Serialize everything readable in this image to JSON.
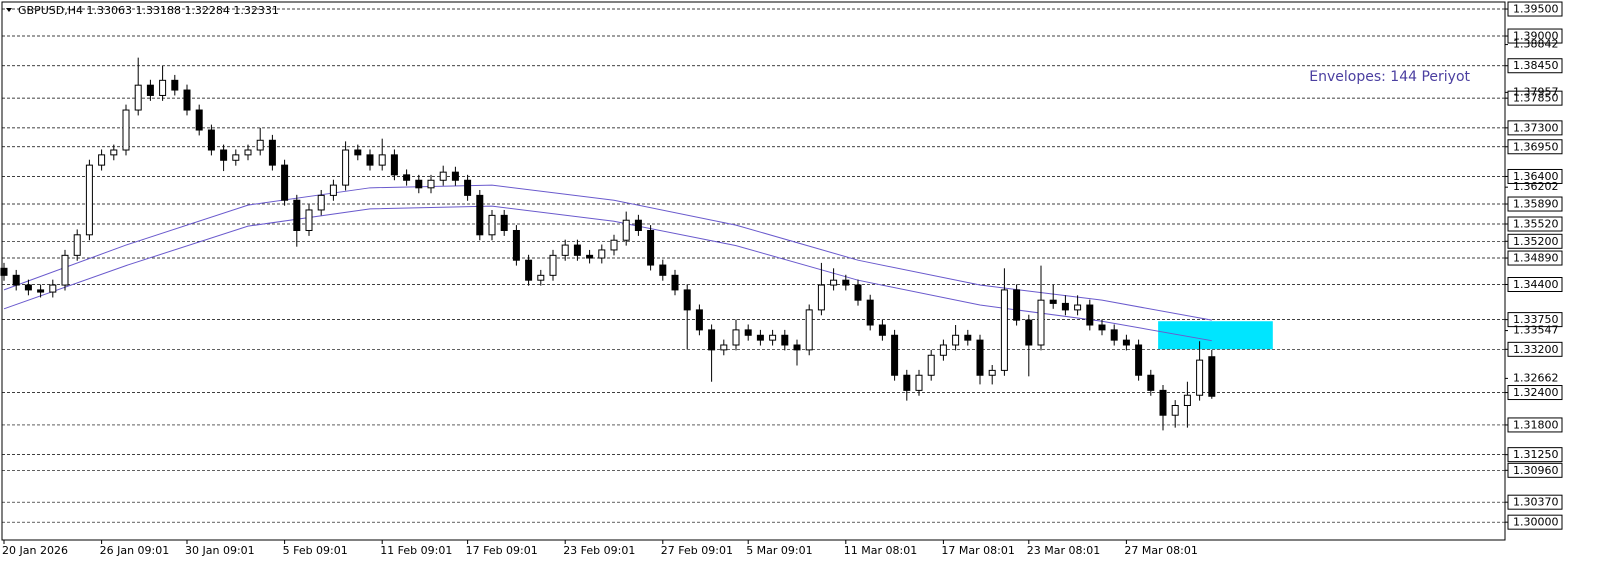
{
  "chart_data": {
    "type": "candlestick",
    "title": "GBPUSD,H4  1.33063 1.33188 1.32284 1.32331",
    "annotation": "Envelopes: 144 Periyot",
    "categories": [
      "20 Jan 2026",
      null,
      null,
      null,
      null,
      null,
      null,
      null,
      "26 Jan 09:01",
      null,
      null,
      null,
      null,
      null,
      null,
      "30 Jan 09:01",
      null,
      null,
      null,
      null,
      null,
      null,
      null,
      "5 Feb 09:01",
      null,
      null,
      null,
      null,
      null,
      null,
      null,
      "11 Feb 09:01",
      null,
      null,
      null,
      null,
      null,
      null,
      "17 Feb 09:01",
      null,
      null,
      null,
      null,
      null,
      null,
      null,
      "23 Feb 09:01",
      null,
      null,
      null,
      null,
      null,
      null,
      null,
      "27 Feb 09:01",
      null,
      null,
      null,
      null,
      null,
      null,
      "5 Mar 09:01",
      null,
      null,
      null,
      null,
      null,
      null,
      null,
      "11 Mar 08:01",
      null,
      null,
      null,
      null,
      null,
      null,
      null,
      "17 Mar 08:01",
      null,
      null,
      null,
      null,
      null,
      null,
      "23 Mar 08:01",
      null,
      null,
      null,
      null,
      null,
      null,
      null,
      "27 Mar 08:01",
      null,
      null,
      null,
      null,
      null,
      null,
      null
    ],
    "candles": [
      [
        1.347,
        1.348,
        1.3447,
        1.3457
      ],
      [
        1.3457,
        1.3467,
        1.3429,
        1.3439
      ],
      [
        1.3439,
        1.3449,
        1.342,
        1.343
      ],
      [
        1.343,
        1.344,
        1.3416,
        1.3426
      ],
      [
        1.3426,
        1.3449,
        1.3416,
        1.3439
      ],
      [
        1.3439,
        1.3504,
        1.3429,
        1.3494
      ],
      [
        1.3494,
        1.3542,
        1.3484,
        1.3532
      ],
      [
        1.3532,
        1.3671,
        1.3522,
        1.3661
      ],
      [
        1.3661,
        1.369,
        1.3651,
        1.368
      ],
      [
        1.368,
        1.3699,
        1.367,
        1.3689
      ],
      [
        1.3689,
        1.3773,
        1.3679,
        1.3763
      ],
      [
        1.3763,
        1.386,
        1.3753,
        1.3809
      ],
      [
        1.3809,
        1.3819,
        1.378,
        1.379
      ],
      [
        1.379,
        1.3845,
        1.378,
        1.3818
      ],
      [
        1.3818,
        1.3828,
        1.379,
        1.38
      ],
      [
        1.38,
        1.381,
        1.3753,
        1.3763
      ],
      [
        1.3763,
        1.3773,
        1.3716,
        1.3726
      ],
      [
        1.3726,
        1.3736,
        1.3679,
        1.3689
      ],
      [
        1.3689,
        1.3699,
        1.365,
        1.367
      ],
      [
        1.367,
        1.369,
        1.366,
        1.368
      ],
      [
        1.368,
        1.3699,
        1.367,
        1.3689
      ],
      [
        1.3689,
        1.373,
        1.3679,
        1.3707
      ],
      [
        1.3707,
        1.3717,
        1.3651,
        1.3661
      ],
      [
        1.3661,
        1.3671,
        1.3586,
        1.3596
      ],
      [
        1.3596,
        1.3606,
        1.351,
        1.354
      ],
      [
        1.354,
        1.3588,
        1.353,
        1.3578
      ],
      [
        1.3578,
        1.3615,
        1.3568,
        1.3605
      ],
      [
        1.3605,
        1.3634,
        1.3595,
        1.3624
      ],
      [
        1.3624,
        1.3705,
        1.3614,
        1.3689
      ],
      [
        1.3689,
        1.3699,
        1.367,
        1.368
      ],
      [
        1.368,
        1.369,
        1.3651,
        1.3661
      ],
      [
        1.3661,
        1.371,
        1.3651,
        1.368
      ],
      [
        1.368,
        1.369,
        1.3633,
        1.3643
      ],
      [
        1.3643,
        1.3653,
        1.3623,
        1.3633
      ],
      [
        1.3633,
        1.3643,
        1.3609,
        1.3619
      ],
      [
        1.3619,
        1.3643,
        1.3609,
        1.3633
      ],
      [
        1.3633,
        1.366,
        1.3623,
        1.3648
      ],
      [
        1.3648,
        1.3658,
        1.3623,
        1.3633
      ],
      [
        1.3633,
        1.3643,
        1.3595,
        1.3605
      ],
      [
        1.3605,
        1.3615,
        1.3522,
        1.3532
      ],
      [
        1.3532,
        1.3578,
        1.3522,
        1.3568
      ],
      [
        1.3568,
        1.3578,
        1.353,
        1.354
      ],
      [
        1.354,
        1.355,
        1.3475,
        1.3485
      ],
      [
        1.3485,
        1.3495,
        1.3438,
        1.3448
      ],
      [
        1.3448,
        1.3467,
        1.3438,
        1.3457
      ],
      [
        1.3457,
        1.3504,
        1.3447,
        1.3494
      ],
      [
        1.3494,
        1.3523,
        1.3484,
        1.3513
      ],
      [
        1.3513,
        1.3523,
        1.3484,
        1.3494
      ],
      [
        1.3494,
        1.3504,
        1.3479,
        1.3489
      ],
      [
        1.3489,
        1.3514,
        1.3479,
        1.3504
      ],
      [
        1.3504,
        1.3532,
        1.3494,
        1.3522
      ],
      [
        1.3522,
        1.3575,
        1.3512,
        1.3559
      ],
      [
        1.3559,
        1.3569,
        1.353,
        1.354
      ],
      [
        1.354,
        1.355,
        1.3466,
        1.3476
      ],
      [
        1.3476,
        1.3486,
        1.3447,
        1.3457
      ],
      [
        1.3457,
        1.3467,
        1.342,
        1.343
      ],
      [
        1.343,
        1.344,
        1.332,
        1.3393
      ],
      [
        1.3393,
        1.3403,
        1.3346,
        1.3356
      ],
      [
        1.3356,
        1.3366,
        1.326,
        1.3319
      ],
      [
        1.3319,
        1.3338,
        1.3309,
        1.3328
      ],
      [
        1.3328,
        1.3375,
        1.3318,
        1.3356
      ],
      [
        1.3356,
        1.3366,
        1.3336,
        1.3346
      ],
      [
        1.3346,
        1.3356,
        1.3327,
        1.3337
      ],
      [
        1.3337,
        1.3356,
        1.3327,
        1.3346
      ],
      [
        1.3346,
        1.3356,
        1.3318,
        1.3328
      ],
      [
        1.3328,
        1.3338,
        1.329,
        1.3319
      ],
      [
        1.3319,
        1.3403,
        1.3309,
        1.3393
      ],
      [
        1.3393,
        1.348,
        1.3383,
        1.3439
      ],
      [
        1.3439,
        1.347,
        1.3429,
        1.3448
      ],
      [
        1.3448,
        1.3458,
        1.3429,
        1.3439
      ],
      [
        1.3439,
        1.3449,
        1.3401,
        1.3411
      ],
      [
        1.3411,
        1.3421,
        1.3355,
        1.3365
      ],
      [
        1.3365,
        1.3375,
        1.3336,
        1.3346
      ],
      [
        1.3346,
        1.3356,
        1.3262,
        1.3272
      ],
      [
        1.3272,
        1.3282,
        1.3225,
        1.3244
      ],
      [
        1.3244,
        1.3282,
        1.3234,
        1.3272
      ],
      [
        1.3272,
        1.3319,
        1.3262,
        1.3309
      ],
      [
        1.3309,
        1.3338,
        1.3299,
        1.3328
      ],
      [
        1.3328,
        1.3365,
        1.3318,
        1.3346
      ],
      [
        1.3346,
        1.3356,
        1.3327,
        1.3337
      ],
      [
        1.3337,
        1.3347,
        1.3255,
        1.3272
      ],
      [
        1.3272,
        1.3291,
        1.3255,
        1.3281
      ],
      [
        1.3281,
        1.347,
        1.3271,
        1.343
      ],
      [
        1.343,
        1.344,
        1.3364,
        1.3374
      ],
      [
        1.3374,
        1.3384,
        1.327,
        1.3328
      ],
      [
        1.3328,
        1.3475,
        1.3318,
        1.3411
      ],
      [
        1.3411,
        1.344,
        1.3395,
        1.3405
      ],
      [
        1.3405,
        1.342,
        1.3383,
        1.3393
      ],
      [
        1.3393,
        1.342,
        1.3383,
        1.3402
      ],
      [
        1.3402,
        1.3412,
        1.3355,
        1.3365
      ],
      [
        1.3365,
        1.3375,
        1.3346,
        1.3356
      ],
      [
        1.3356,
        1.3366,
        1.3327,
        1.3337
      ],
      [
        1.3337,
        1.3347,
        1.3318,
        1.3328
      ],
      [
        1.3328,
        1.3338,
        1.3262,
        1.3272
      ],
      [
        1.3272,
        1.3282,
        1.3234,
        1.3244
      ],
      [
        1.3244,
        1.3254,
        1.317,
        1.3198
      ],
      [
        1.3198,
        1.3226,
        1.3175,
        1.3216
      ],
      [
        1.3216,
        1.326,
        1.3175,
        1.3235
      ],
      [
        1.3235,
        1.3335,
        1.3225,
        1.33
      ],
      [
        1.33063,
        1.33188,
        1.32284,
        1.32331
      ]
    ],
    "envelopes": {
      "color": "#6a5acd",
      "x": [
        0,
        10,
        20,
        30,
        40,
        50,
        60,
        70,
        80,
        90,
        99
      ],
      "upper": [
        1.343,
        1.3513,
        1.3587,
        1.3619,
        1.3624,
        1.3596,
        1.355,
        1.3485,
        1.3439,
        1.3411,
        1.3374
      ],
      "lower": [
        1.3395,
        1.3475,
        1.3548,
        1.358,
        1.3585,
        1.3557,
        1.3512,
        1.3448,
        1.3402,
        1.3372,
        1.3336
      ]
    },
    "zone": {
      "color": "#00e5ff",
      "from": 94.6,
      "to": 104,
      "top": 1.3372,
      "bottom": 1.332
    },
    "ylim": [
      1.2967,
      1.3963
    ],
    "yticks": [
      {
        "value": 1.395,
        "label": "1.39500"
      },
      {
        "value": 1.39,
        "label": "1.39000"
      },
      {
        "value": 1.3845,
        "label": "1.38450"
      },
      {
        "value": 1.3785,
        "label": "1.37850"
      },
      {
        "value": 1.373,
        "label": "1.37300"
      },
      {
        "value": 1.3695,
        "label": "1.36950"
      },
      {
        "value": 1.364,
        "label": "1.36400"
      },
      {
        "value": 1.3589,
        "label": "1.35890"
      },
      {
        "value": 1.3552,
        "label": "1.35520"
      },
      {
        "value": 1.352,
        "label": "1.35200"
      },
      {
        "value": 1.3489,
        "label": "1.34890"
      },
      {
        "value": 1.344,
        "label": "1.34400"
      },
      {
        "value": 1.3375,
        "label": "1.33750"
      },
      {
        "value": 1.332,
        "label": "1.33200"
      },
      {
        "value": 1.324,
        "label": "1.32400"
      },
      {
        "value": 1.318,
        "label": "1.31800"
      },
      {
        "value": 1.3125,
        "label": "1.31250"
      },
      {
        "value": 1.3096,
        "label": "1.30960"
      },
      {
        "value": 1.3037,
        "label": "1.30370"
      },
      {
        "value": 1.3,
        "label": "1.30000"
      }
    ],
    "price_labels": [
      {
        "value": 1.38842,
        "label": "1.38842"
      },
      {
        "value": 1.37957,
        "label": "1.37957"
      },
      {
        "value": 1.36202,
        "label": "1.36202"
      },
      {
        "value": 1.33547,
        "label": "1.33547"
      },
      {
        "value": 1.32662,
        "label": "1.32662"
      }
    ],
    "grid": true
  }
}
